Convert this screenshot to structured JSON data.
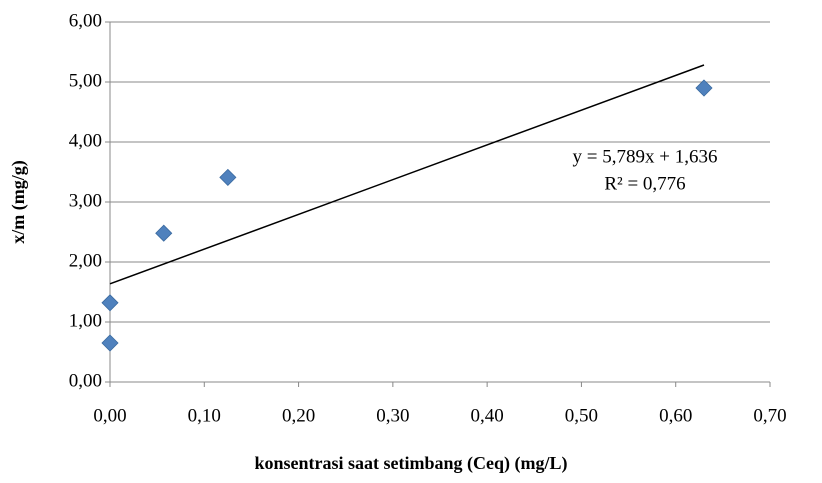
{
  "chart_data": {
    "type": "scatter",
    "x_label": "konsentrasi  saat setimbang (Ceq) (mg/L)",
    "y_label": "x/m (mg/g)",
    "x": [
      0.0,
      0.0,
      0.057,
      0.125,
      0.63
    ],
    "values": [
      0.65,
      1.32,
      2.48,
      3.41,
      4.9
    ],
    "color": "#4f81bd",
    "xlim": [
      0,
      0.7
    ],
    "xticks": [
      {
        "value": 0,
        "label": "0,00"
      },
      {
        "value": 0.1,
        "label": "0,10"
      },
      {
        "value": 0.2,
        "label": "0,20"
      },
      {
        "value": 0.3,
        "label": "0,30"
      },
      {
        "value": 0.4,
        "label": "0,40"
      },
      {
        "value": 0.5,
        "label": "0,50"
      },
      {
        "value": 0.6,
        "label": "0,60"
      },
      {
        "value": 0.7,
        "label": "0,70"
      }
    ],
    "ylim": [
      0,
      6
    ],
    "yticks": [
      {
        "value": 0,
        "label": "0,00"
      },
      {
        "value": 1,
        "label": "1,00"
      },
      {
        "value": 2,
        "label": "2,00"
      },
      {
        "value": 3,
        "label": "3,00"
      },
      {
        "value": 4,
        "label": "4,00"
      },
      {
        "value": 5,
        "label": "5,00"
      },
      {
        "value": 6,
        "label": "6,00"
      }
    ],
    "grid": true,
    "trendline": {
      "slope": 5.789,
      "intercept": 1.636,
      "equation": "y = 5,789x + 1,636",
      "r_squared": "R² = 0,776"
    }
  }
}
